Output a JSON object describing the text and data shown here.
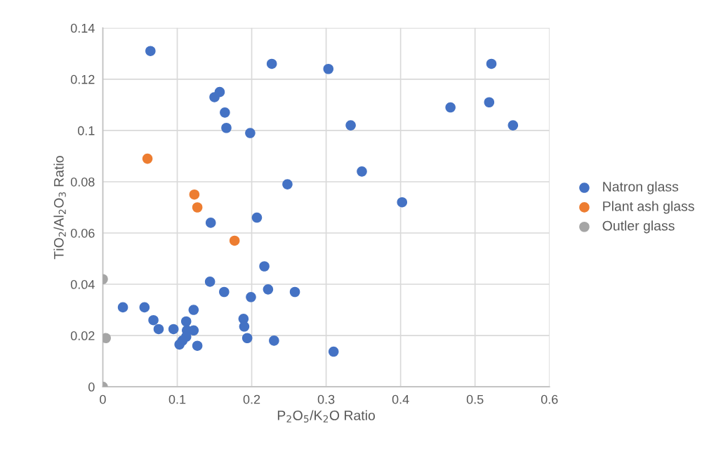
{
  "chart_data": {
    "type": "scatter",
    "xlabel": "P$_{2}$O$_{5}$/K$_{2}$O Ratio",
    "ylabel": "TiO$_{2}$/Al$_{2}$O$_{3}$ Ratio",
    "xlim": [
      0,
      0.6
    ],
    "ylim": [
      0,
      0.14
    ],
    "xticks": [
      0,
      {
        "value": 0.1,
        "label": "0.1"
      },
      {
        "value": 0.2,
        "label": "0.2"
      },
      {
        "value": 0.3,
        "label": "0.3"
      },
      {
        "value": 0.4,
        "label": "0.4"
      },
      {
        "value": 0.5,
        "label": "0.5"
      },
      {
        "value": 0.6,
        "label": "0.6"
      }
    ],
    "yticks": [
      0,
      {
        "value": 0.02,
        "label": "0.02"
      },
      {
        "value": 0.04,
        "label": "0.04"
      },
      {
        "value": 0.06,
        "label": "0.06"
      },
      {
        "value": 0.08,
        "label": "0.08"
      },
      {
        "value": 0.1,
        "label": "0.1"
      },
      {
        "value": 0.12,
        "label": "0.12"
      },
      {
        "value": 0.14,
        "label": "0.14"
      }
    ],
    "grid": true,
    "legend": "right",
    "marker": "circle",
    "series": [
      {
        "name": "Natron glass",
        "color": "#4472c4",
        "x": [
          0.064,
          0.227,
          0.303,
          0.522,
          0.157,
          0.15,
          0.164,
          0.166,
          0.198,
          0.333,
          0.467,
          0.519,
          0.551,
          0.348,
          0.248,
          0.402,
          0.145,
          0.207,
          0.217,
          0.144,
          0.163,
          0.222,
          0.258,
          0.199,
          0.027,
          0.056,
          0.068,
          0.075,
          0.095,
          0.122,
          0.112,
          0.122,
          0.113,
          0.112,
          0.107,
          0.103,
          0.127,
          0.189,
          0.19,
          0.194,
          0.23,
          0.31
        ],
        "values": [
          0.131,
          0.126,
          0.124,
          0.126,
          0.115,
          0.113,
          0.107,
          0.101,
          0.099,
          0.102,
          0.109,
          0.111,
          0.102,
          0.084,
          0.079,
          0.072,
          0.064,
          0.066,
          0.047,
          0.041,
          0.037,
          0.038,
          0.037,
          0.035,
          0.031,
          0.031,
          0.026,
          0.0225,
          0.0225,
          0.03,
          0.0255,
          0.022,
          0.022,
          0.0195,
          0.018,
          0.0165,
          0.016,
          0.0265,
          0.0235,
          0.019,
          0.018,
          0.0137
        ]
      },
      {
        "name": "Plant ash glass",
        "color": "#ed7d31",
        "x": [
          0.06,
          0.123,
          0.127,
          0.177
        ],
        "values": [
          0.089,
          0.075,
          0.07,
          0.057
        ]
      },
      {
        "name": "Outler glass",
        "color": "#a5a5a5",
        "x": [
          0,
          0.004,
          0
        ],
        "values": [
          0.042,
          0.019,
          0
        ]
      }
    ]
  }
}
